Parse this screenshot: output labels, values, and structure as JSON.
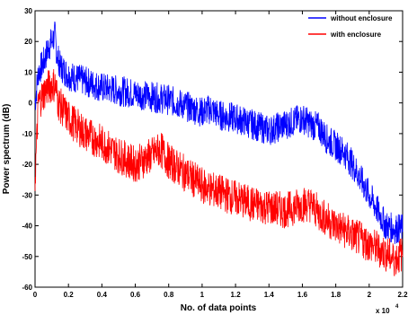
{
  "chart_data": {
    "type": "line",
    "xlabel": "No. of data points",
    "ylabel": "Power spectrum (dB)",
    "x_multiplier_label": "x 10",
    "x_multiplier_exponent": "4",
    "xlim": [
      0,
      2.2
    ],
    "ylim": [
      -60,
      30
    ],
    "x_ticks": [
      0,
      0.2,
      0.4,
      0.6,
      0.8,
      1,
      1.2,
      1.4,
      1.6,
      1.8,
      2,
      2.2
    ],
    "x_tick_labels": [
      "0",
      "0.2",
      "0.4",
      "0.6",
      "0.8",
      "1",
      "1.2",
      "1.4",
      "1.6",
      "1.8",
      "2",
      "2.2"
    ],
    "y_ticks": [
      -60,
      -50,
      -40,
      -30,
      -20,
      -10,
      0,
      10,
      20,
      30
    ],
    "y_tick_labels": [
      "-60",
      "-50",
      "-40",
      "-30",
      "-20",
      "-10",
      "0",
      "10",
      "20",
      "30"
    ],
    "grid": false,
    "legend_position": "top-right",
    "series": [
      {
        "name": "without enclosure",
        "color": "#0000ff",
        "x": [
          0,
          0.02,
          0.05,
          0.08,
          0.1,
          0.12,
          0.13,
          0.15,
          0.2,
          0.3,
          0.4,
          0.5,
          0.6,
          0.7,
          0.8,
          0.9,
          1.0,
          1.05,
          1.1,
          1.2,
          1.3,
          1.4,
          1.5,
          1.55,
          1.6,
          1.65,
          1.7,
          1.75,
          1.8,
          1.85,
          1.9,
          1.95,
          2.0,
          2.05,
          2.1,
          2.15,
          2.2
        ],
        "y": [
          0,
          10,
          13,
          18,
          20,
          22,
          16,
          12,
          9,
          7,
          5,
          4,
          3,
          2,
          1,
          -1,
          -3,
          -2,
          -4,
          -5,
          -7,
          -9,
          -7,
          -6,
          -5,
          -7,
          -8,
          -12,
          -14,
          -16,
          -20,
          -25,
          -30,
          -35,
          -40,
          -41,
          -41
        ]
      },
      {
        "name": "with enclosure",
        "color": "#ff0000",
        "x": [
          0,
          0.02,
          0.04,
          0.06,
          0.08,
          0.1,
          0.12,
          0.14,
          0.2,
          0.3,
          0.4,
          0.5,
          0.6,
          0.7,
          0.75,
          0.8,
          0.9,
          1.0,
          1.1,
          1.2,
          1.3,
          1.4,
          1.5,
          1.6,
          1.65,
          1.7,
          1.8,
          1.9,
          2.0,
          2.1,
          2.15,
          2.2
        ],
        "y": [
          -25,
          0,
          2,
          4,
          5,
          6,
          6,
          0,
          -5,
          -10,
          -13,
          -17,
          -20,
          -17,
          -15,
          -19,
          -23,
          -27,
          -29,
          -31,
          -33,
          -34,
          -35,
          -33,
          -33,
          -36,
          -40,
          -43,
          -46,
          -49,
          -51,
          -49
        ]
      }
    ]
  }
}
